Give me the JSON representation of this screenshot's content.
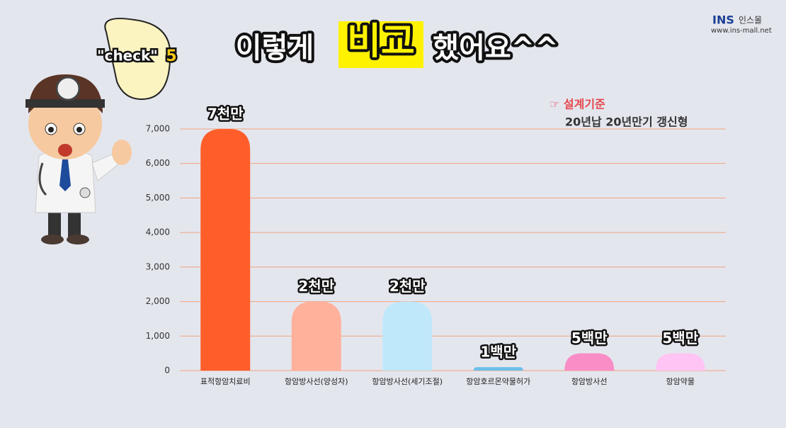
{
  "chart_data": {
    "type": "bar",
    "title_parts": [
      "이렇게",
      "비교",
      "했어요^^"
    ],
    "bubble": [
      "\"check\"",
      "5"
    ],
    "logo": {
      "brand": "INS",
      "name": "인스몰",
      "url": "www.ins-mall.net"
    },
    "annotation": {
      "heading": "☞ 설계기준",
      "detail": "20년납 20년만기 갱신형"
    },
    "categories": [
      "표적항암치료비",
      "항암방사선(양성자)",
      "항암방사선(세기조절)",
      "항암호르몬약물허가",
      "항암방사선",
      "항암약물"
    ],
    "values": [
      7000,
      2000,
      2000,
      100,
      500,
      500
    ],
    "value_labels": [
      "7천만",
      "2천만",
      "2천만",
      "1백만",
      "5백만",
      "5백만"
    ],
    "colors": [
      "#ff5e2b",
      "#ffb19b",
      "#bfe8fb",
      "#6cbfe9",
      "#f98dc6",
      "#ffc4f3"
    ],
    "ylim": [
      0,
      7000
    ],
    "yticks": [
      0,
      {
        "value": 1000,
        "label": "1,000"
      },
      {
        "value": 2000,
        "label": "2,000"
      },
      {
        "value": 3000,
        "label": "3,000"
      },
      {
        "value": 4000,
        "label": "4,000"
      },
      {
        "value": 5000,
        "label": "5,000"
      },
      {
        "value": 6000,
        "label": "6,000"
      },
      {
        "value": 7000,
        "label": "7,000"
      }
    ],
    "grid": true,
    "grid_color": "#f0a47e"
  }
}
